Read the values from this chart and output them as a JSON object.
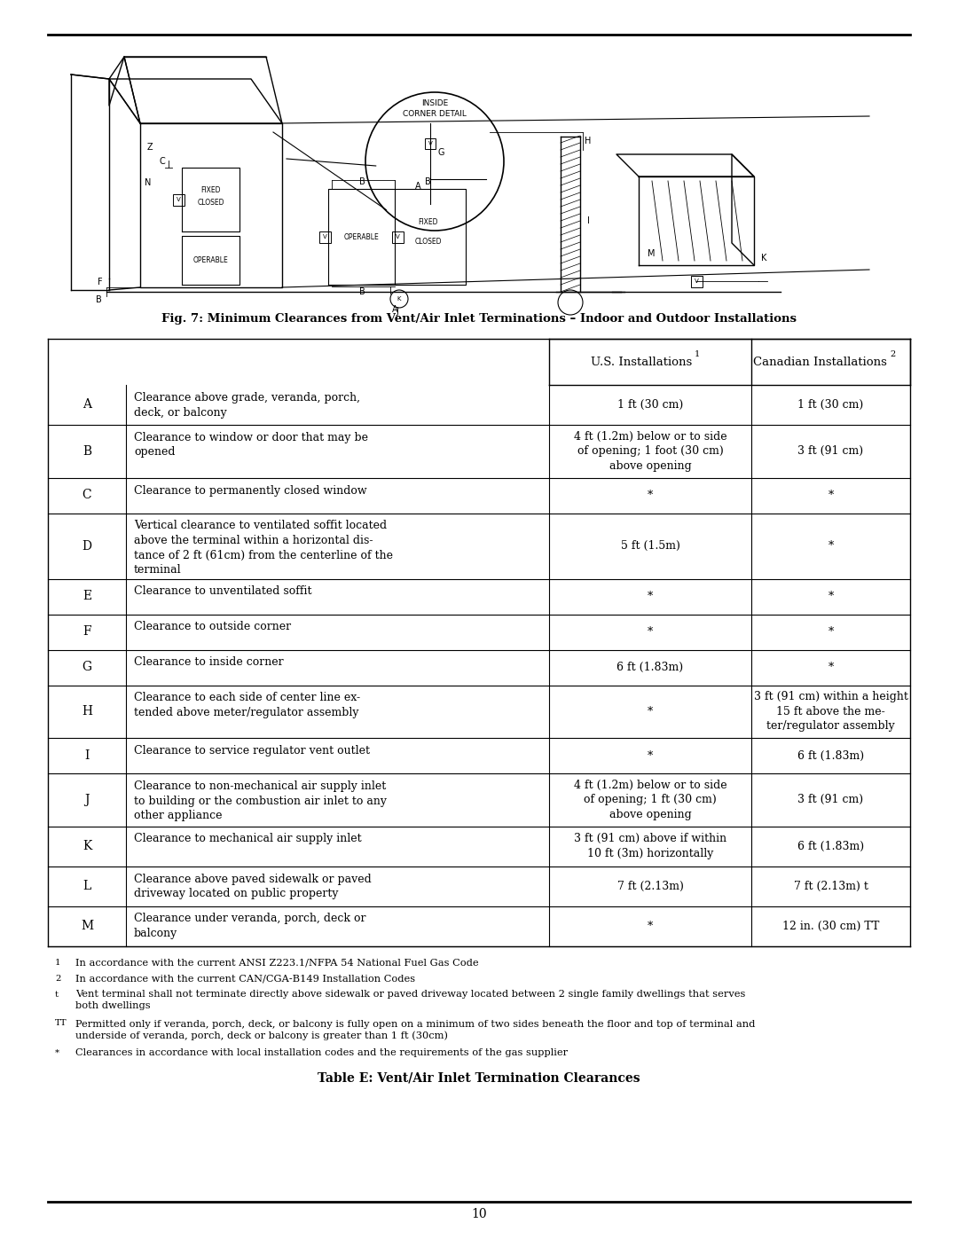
{
  "page_number": "10",
  "fig_caption": "Fig. 7: Minimum Clearances from Vent/Air Inlet Terminations – Indoor and Outdoor Installations",
  "table_title": "Table E: Vent/Air Inlet Termination Clearances",
  "rows": [
    {
      "letter": "A",
      "description": "Clearance above grade, veranda, porch,\ndeck, or balcony",
      "us": "1 ft (30 cm)",
      "canada": "1 ft (30 cm)",
      "desc_lines": 2,
      "us_lines": 1,
      "ca_lines": 1
    },
    {
      "letter": "B",
      "description": "Clearance to window or door that may be\nopened",
      "us": "4 ft (1.2m) below or to side\nof opening; 1 foot (30 cm)\nabove opening",
      "canada": "3 ft (91 cm)",
      "desc_lines": 2,
      "us_lines": 3,
      "ca_lines": 1
    },
    {
      "letter": "C",
      "description": "Clearance to permanently closed window",
      "us": "*",
      "canada": "*",
      "desc_lines": 1,
      "us_lines": 1,
      "ca_lines": 1
    },
    {
      "letter": "D",
      "description": "Vertical clearance to ventilated soffit located\nabove the terminal within a horizontal dis-\ntance of 2 ft (61cm) from the centerline of the\nterminal",
      "us": "5 ft (1.5m)",
      "canada": "*",
      "desc_lines": 4,
      "us_lines": 1,
      "ca_lines": 1
    },
    {
      "letter": "E",
      "description": "Clearance to unventilated soffit",
      "us": "*",
      "canada": "*",
      "desc_lines": 1,
      "us_lines": 1,
      "ca_lines": 1
    },
    {
      "letter": "F",
      "description": "Clearance to outside corner",
      "us": "*",
      "canada": "*",
      "desc_lines": 1,
      "us_lines": 1,
      "ca_lines": 1
    },
    {
      "letter": "G",
      "description": "Clearance to inside corner",
      "us": "6 ft (1.83m)",
      "canada": "*",
      "desc_lines": 1,
      "us_lines": 1,
      "ca_lines": 1
    },
    {
      "letter": "H",
      "description": "Clearance to each side of center line ex-\ntended above meter/regulator assembly",
      "us": "*",
      "canada": "3 ft (91 cm) within a height\n15 ft above the me-\nter/regulator assembly",
      "desc_lines": 2,
      "us_lines": 1,
      "ca_lines": 3
    },
    {
      "letter": "I",
      "description": "Clearance to service regulator vent outlet",
      "us": "*",
      "canada": "6 ft (1.83m)",
      "desc_lines": 1,
      "us_lines": 1,
      "ca_lines": 1
    },
    {
      "letter": "J",
      "description": "Clearance to non-mechanical air supply inlet\nto building or the combustion air inlet to any\nother appliance",
      "us": "4 ft (1.2m) below or to side\nof opening; 1 ft (30 cm)\nabove opening",
      "canada": "3 ft (91 cm)",
      "desc_lines": 3,
      "us_lines": 3,
      "ca_lines": 1
    },
    {
      "letter": "K",
      "description": "Clearance to mechanical air supply inlet",
      "us": "3 ft (91 cm) above if within\n10 ft (3m) horizontally",
      "canada": "6 ft (1.83m)",
      "desc_lines": 1,
      "us_lines": 2,
      "ca_lines": 1
    },
    {
      "letter": "L",
      "description": "Clearance above paved sidewalk or paved\ndriveway located on public property",
      "us": "7 ft (2.13m)",
      "canada": "7 ft (2.13m) t",
      "desc_lines": 2,
      "us_lines": 1,
      "ca_lines": 1
    },
    {
      "letter": "M",
      "description": "Clearance under veranda, porch, deck or\nbalcony",
      "us": "*",
      "canada": "12 in. (30 cm) TT",
      "desc_lines": 2,
      "us_lines": 1,
      "ca_lines": 1
    }
  ],
  "background_color": "#ffffff"
}
